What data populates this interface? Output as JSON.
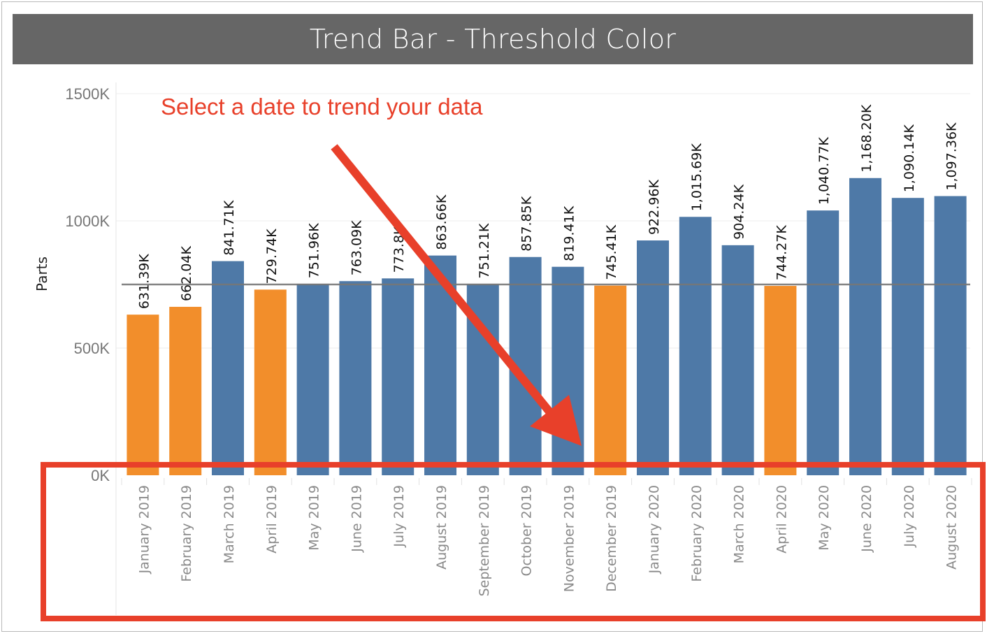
{
  "title": "Trend Bar - Threshold Color",
  "annotation": "Select a date to trend your data",
  "colors": {
    "below_threshold": "#f28e2b",
    "above_threshold": "#4e79a7",
    "threshold_line": "#777777",
    "annotation": "#e8402a",
    "title_bg": "#666666"
  },
  "chart_data": {
    "type": "bar",
    "title": "Trend Bar - Threshold Color",
    "ylabel": "Parts",
    "xlabel": "",
    "ylim": [
      0,
      1500000
    ],
    "yticks": [
      {
        "value": 0,
        "label": "0K"
      },
      {
        "value": 500000,
        "label": "500K"
      },
      {
        "value": 1000000,
        "label": "1000K"
      },
      {
        "value": 1500000,
        "label": "1500K"
      }
    ],
    "threshold": 750000,
    "categories": [
      "January 2019",
      "February 2019",
      "March 2019",
      "April 2019",
      "May 2019",
      "June 2019",
      "July 2019",
      "August 2019",
      "September 2019",
      "October 2019",
      "November 2019",
      "December 2019",
      "January 2020",
      "February 2020",
      "March 2020",
      "April 2020",
      "May 2020",
      "June 2020",
      "July 2020",
      "August 2020"
    ],
    "values": [
      631390,
      662040,
      841710,
      729740,
      751960,
      763090,
      773800,
      863660,
      751210,
      857850,
      819410,
      745410,
      922960,
      1015690,
      904240,
      744270,
      1040770,
      1168200,
      1090140,
      1097360
    ],
    "labels": [
      "631.39K",
      "662.04K",
      "841.71K",
      "729.74K",
      "751.96K",
      "763.09K",
      "773.8K",
      "863.66K",
      "751.21K",
      "857.85K",
      "819.41K",
      "745.41K",
      "922.96K",
      "1,015.69K",
      "904.24K",
      "744.27K",
      "1,040.77K",
      "1,168.20K",
      "1,090.14K",
      "1,097.36K"
    ],
    "grid": true,
    "legend": "none"
  }
}
